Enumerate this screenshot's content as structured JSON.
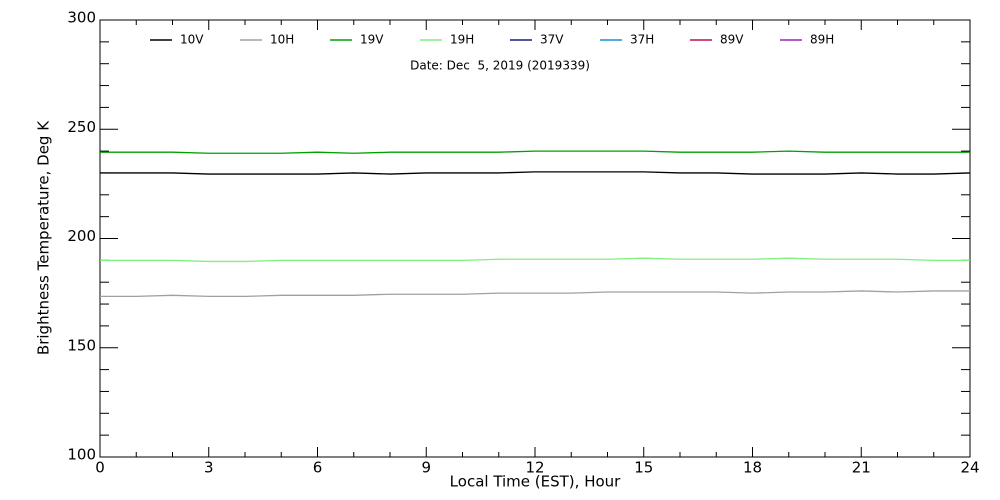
{
  "chart_data": {
    "type": "line",
    "annotation": "Date: Dec  5, 2019 (2019339)",
    "x_label": "Local Time (EST), Hour",
    "y_label": "Brightness Temperature, Deg K",
    "x": [
      0,
      1,
      2,
      3,
      4,
      5,
      6,
      7,
      8,
      9,
      10,
      11,
      12,
      13,
      14,
      15,
      16,
      17,
      18,
      19,
      20,
      21,
      22,
      23,
      24
    ],
    "xlim": [
      0,
      24
    ],
    "xticks": [
      0,
      3,
      6,
      9,
      12,
      15,
      18,
      21,
      24
    ],
    "ylim": [
      100,
      300
    ],
    "yticks": [
      100,
      150,
      200,
      250,
      300
    ],
    "series": [
      {
        "name": "10V",
        "color": "#000000",
        "values": [
          230,
          230,
          230,
          229.5,
          229.5,
          229.5,
          229.5,
          230,
          229.5,
          230,
          230,
          230,
          230.5,
          230.5,
          230.5,
          230.5,
          230,
          230,
          229.5,
          229.5,
          229.5,
          230,
          229.5,
          229.5,
          230
        ]
      },
      {
        "name": "10H",
        "color": "#a0a0a0",
        "values": [
          173.5,
          173.5,
          174,
          173.5,
          173.5,
          174,
          174,
          174,
          174.5,
          174.5,
          174.5,
          175,
          175,
          175,
          175.5,
          175.5,
          175.5,
          175.5,
          175,
          175.5,
          175.5,
          176,
          175.5,
          176,
          176
        ]
      },
      {
        "name": "19V",
        "color": "#00a000",
        "values": [
          239.5,
          239.5,
          239.5,
          239,
          239,
          239,
          239.5,
          239,
          239.5,
          239.5,
          239.5,
          239.5,
          240,
          240,
          240,
          240,
          239.5,
          239.5,
          239.5,
          240,
          239.5,
          239.5,
          239.5,
          239.5,
          239.5
        ]
      },
      {
        "name": "19H",
        "color": "#80f080",
        "values": [
          190,
          190,
          190,
          189.5,
          189.5,
          190,
          190,
          190,
          190,
          190,
          190,
          190.5,
          190.5,
          190.5,
          190.5,
          191,
          190.5,
          190.5,
          190.5,
          191,
          190.5,
          190.5,
          190.5,
          190,
          190
        ]
      },
      {
        "name": "37V",
        "color": "#1a1a80",
        "values": [
          null,
          null,
          null,
          null,
          null,
          null,
          null,
          null,
          null,
          null,
          null,
          null,
          null,
          null,
          null,
          null,
          null,
          null,
          null,
          null,
          null,
          null,
          null,
          null,
          null
        ]
      },
      {
        "name": "37H",
        "color": "#1890d0",
        "values": [
          null,
          null,
          null,
          null,
          null,
          null,
          null,
          null,
          null,
          null,
          null,
          null,
          null,
          null,
          null,
          null,
          null,
          null,
          null,
          null,
          null,
          null,
          null,
          null,
          null
        ]
      },
      {
        "name": "89V",
        "color": "#c01040",
        "values": [
          null,
          null,
          null,
          null,
          null,
          null,
          null,
          null,
          null,
          null,
          null,
          null,
          null,
          null,
          null,
          null,
          null,
          null,
          null,
          null,
          null,
          null,
          null,
          null,
          null
        ]
      },
      {
        "name": "89H",
        "color": "#a020c0",
        "values": [
          null,
          null,
          null,
          null,
          null,
          null,
          null,
          null,
          null,
          null,
          null,
          null,
          null,
          null,
          null,
          null,
          null,
          null,
          null,
          null,
          null,
          null,
          null,
          null,
          null
        ]
      }
    ]
  }
}
